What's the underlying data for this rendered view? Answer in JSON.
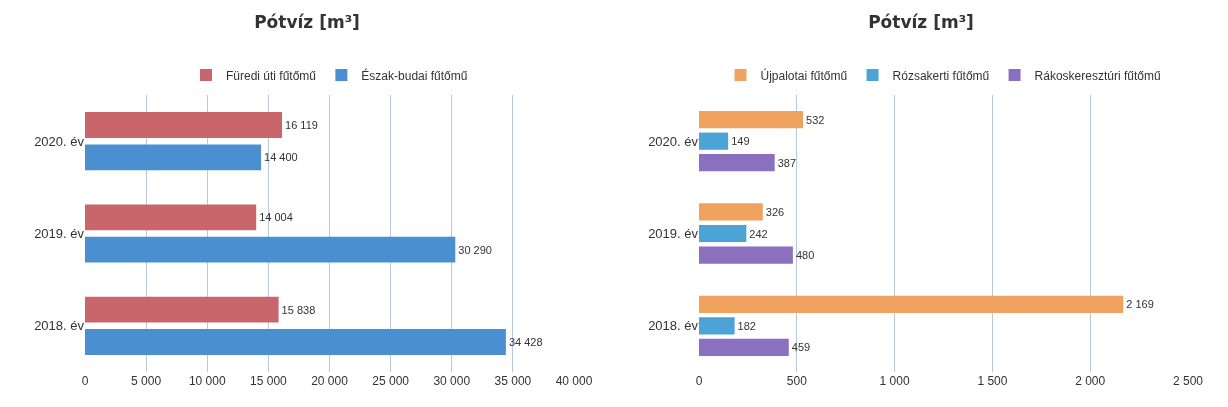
{
  "chart_data": [
    {
      "type": "bar",
      "title": "Pótvíz [m³]",
      "orientation": "horizontal",
      "categories": [
        "2020. év",
        "2019. év",
        "2018. év"
      ],
      "series": [
        {
          "name": "Füredi úti fűtőmű",
          "color": "#c9666b",
          "values": [
            16119,
            14004,
            15838
          ],
          "value_labels": [
            "16 119",
            "14 004",
            "15 838"
          ]
        },
        {
          "name": "Észak-budai fűtőmű",
          "color": "#4a8fd0",
          "values": [
            14400,
            30290,
            34428
          ],
          "value_labels": [
            "14 400",
            "30 290",
            "34 428"
          ]
        }
      ],
      "xlim": [
        0,
        40000
      ],
      "xticks": [
        {
          "value": 0,
          "label": "0"
        },
        {
          "value": 5000,
          "label": "5 000"
        },
        {
          "value": 10000,
          "label": "10 000"
        },
        {
          "value": 15000,
          "label": "15 000"
        },
        {
          "value": 20000,
          "label": "20 000"
        },
        {
          "value": 25000,
          "label": "25 000"
        },
        {
          "value": 30000,
          "label": "30 000"
        },
        {
          "value": 35000,
          "label": "35 000"
        },
        {
          "value": 40000,
          "label": "40 000"
        }
      ],
      "grid": "x",
      "legend": "top"
    },
    {
      "type": "bar",
      "title": "Pótvíz [m³]",
      "orientation": "horizontal",
      "categories": [
        "2020. év",
        "2019. év",
        "2018. év"
      ],
      "series": [
        {
          "name": "Újpalotai fűtőmű",
          "color": "#f0a35e",
          "values": [
            532,
            326,
            2169
          ],
          "value_labels": [
            "532",
            "326",
            "2 169"
          ]
        },
        {
          "name": "Rózsakerti fűtőmű",
          "color": "#4ba3d6",
          "values": [
            149,
            242,
            182
          ],
          "value_labels": [
            "149",
            "242",
            "182"
          ]
        },
        {
          "name": "Rákoskeresztúri fűtőmű",
          "color": "#8a70bf",
          "values": [
            387,
            480,
            459
          ],
          "value_labels": [
            "387",
            "480",
            "459"
          ]
        }
      ],
      "xlim": [
        0,
        2500
      ],
      "xticks": [
        {
          "value": 0,
          "label": "0"
        },
        {
          "value": 500,
          "label": "500"
        },
        {
          "value": 1000,
          "label": "1 000"
        },
        {
          "value": 1500,
          "label": "1 500"
        },
        {
          "value": 2000,
          "label": "2 000"
        },
        {
          "value": 2500,
          "label": "2 500"
        }
      ],
      "grid": "x",
      "legend": "top"
    }
  ]
}
